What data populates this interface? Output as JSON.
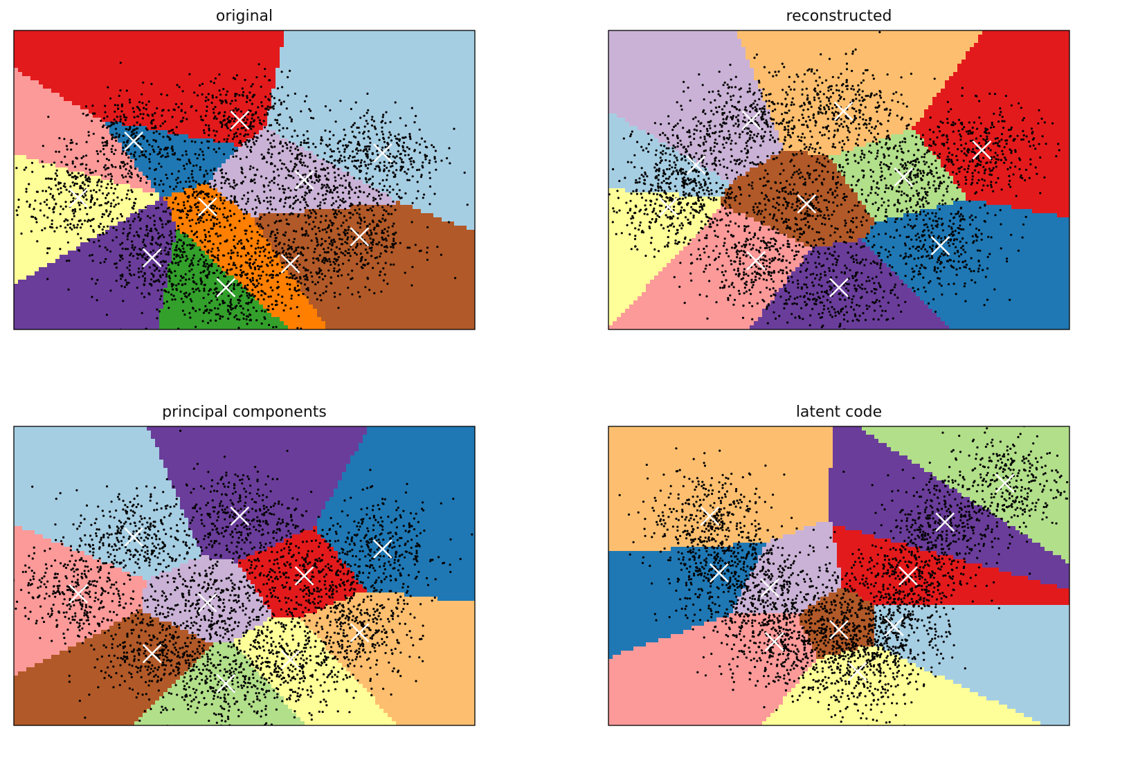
{
  "chart_data": [
    {
      "type": "scatter",
      "title": "original",
      "xlabel": "",
      "ylabel": "",
      "axes_ticks": false,
      "grid": false,
      "xlim": [
        0,
        1
      ],
      "ylim": [
        0,
        1
      ],
      "background": "voronoi-regions",
      "centroids": [
        {
          "x": 0.27,
          "y": 0.64,
          "color": "#1f78b4"
        },
        {
          "x": 0.12,
          "y": 0.44,
          "color": "#ffff99"
        },
        {
          "x": 0.45,
          "y": 0.28,
          "color": "#ff7f00"
        },
        {
          "x": 0.38,
          "y": 0.23,
          "color": "#33a02c"
        },
        {
          "x": 0.63,
          "y": 0.36,
          "color": "#b15928"
        },
        {
          "x": 0.19,
          "y": 0.6,
          "color": "#fb9a99"
        },
        {
          "x": 0.29,
          "y": 0.71,
          "color": "#e31a1c"
        },
        {
          "x": 0.62,
          "y": 0.43,
          "color": "#cab2d6"
        },
        {
          "x": 0.8,
          "y": 0.64,
          "color": "#a6cee3"
        },
        {
          "x": 0.3,
          "y": 0.24,
          "color": "#6a3d9a"
        }
      ],
      "marker_centroids": [
        {
          "x": 0.14,
          "y": 0.44
        },
        {
          "x": 0.26,
          "y": 0.63
        },
        {
          "x": 0.49,
          "y": 0.7
        },
        {
          "x": 0.42,
          "y": 0.41
        },
        {
          "x": 0.63,
          "y": 0.5
        },
        {
          "x": 0.8,
          "y": 0.59
        },
        {
          "x": 0.3,
          "y": 0.24
        },
        {
          "x": 0.46,
          "y": 0.14
        },
        {
          "x": 0.6,
          "y": 0.22
        },
        {
          "x": 0.75,
          "y": 0.31
        }
      ]
    },
    {
      "type": "scatter",
      "title": "reconstructed",
      "xlabel": "",
      "ylabel": "",
      "axes_ticks": false,
      "grid": false,
      "xlim": [
        0,
        1
      ],
      "ylim": [
        0,
        1
      ],
      "background": "voronoi-regions",
      "centroids": [
        {
          "x": 0.2,
          "y": 0.66,
          "color": "#cab2d6"
        },
        {
          "x": 0.09,
          "y": 0.54,
          "color": "#a6cee3"
        },
        {
          "x": 0.07,
          "y": 0.38,
          "color": "#ffff99"
        },
        {
          "x": 0.3,
          "y": 0.24,
          "color": "#fb9a99"
        },
        {
          "x": 0.43,
          "y": 0.42,
          "color": "#b15928"
        },
        {
          "x": 0.51,
          "y": 0.74,
          "color": "#fdbf6f"
        },
        {
          "x": 0.63,
          "y": 0.51,
          "color": "#b2df8a"
        },
        {
          "x": 0.81,
          "y": 0.6,
          "color": "#e31a1c"
        },
        {
          "x": 0.72,
          "y": 0.28,
          "color": "#1f78b4"
        },
        {
          "x": 0.5,
          "y": 0.14,
          "color": "#6a3d9a"
        }
      ],
      "marker_centroids": [
        {
          "x": 0.31,
          "y": 0.7
        },
        {
          "x": 0.19,
          "y": 0.55
        },
        {
          "x": 0.13,
          "y": 0.41
        },
        {
          "x": 0.32,
          "y": 0.23
        },
        {
          "x": 0.43,
          "y": 0.42
        },
        {
          "x": 0.51,
          "y": 0.73
        },
        {
          "x": 0.64,
          "y": 0.51
        },
        {
          "x": 0.81,
          "y": 0.6
        },
        {
          "x": 0.72,
          "y": 0.28
        },
        {
          "x": 0.5,
          "y": 0.14
        }
      ]
    },
    {
      "type": "scatter",
      "title": "principal components",
      "xlabel": "",
      "ylabel": "",
      "axes_ticks": false,
      "grid": false,
      "xlim": [
        0,
        1
      ],
      "ylim": [
        0,
        1
      ],
      "background": "voronoi-regions",
      "centroids": [
        {
          "x": 0.27,
          "y": 0.64,
          "color": "#a6cee3"
        },
        {
          "x": 0.14,
          "y": 0.44,
          "color": "#fb9a99"
        },
        {
          "x": 0.49,
          "y": 0.7,
          "color": "#6a3d9a"
        },
        {
          "x": 0.42,
          "y": 0.41,
          "color": "#cab2d6"
        },
        {
          "x": 0.63,
          "y": 0.5,
          "color": "#e31a1c"
        },
        {
          "x": 0.8,
          "y": 0.59,
          "color": "#1f78b4"
        },
        {
          "x": 0.3,
          "y": 0.24,
          "color": "#b15928"
        },
        {
          "x": 0.46,
          "y": 0.14,
          "color": "#b2df8a"
        },
        {
          "x": 0.6,
          "y": 0.22,
          "color": "#ffff99"
        },
        {
          "x": 0.75,
          "y": 0.31,
          "color": "#fdbf6f"
        }
      ],
      "marker_centroids": [
        {
          "x": 0.14,
          "y": 0.44
        },
        {
          "x": 0.26,
          "y": 0.63
        },
        {
          "x": 0.49,
          "y": 0.7
        },
        {
          "x": 0.42,
          "y": 0.41
        },
        {
          "x": 0.63,
          "y": 0.5
        },
        {
          "x": 0.8,
          "y": 0.59
        },
        {
          "x": 0.3,
          "y": 0.24
        },
        {
          "x": 0.46,
          "y": 0.14
        },
        {
          "x": 0.6,
          "y": 0.22
        },
        {
          "x": 0.75,
          "y": 0.31
        }
      ]
    },
    {
      "type": "scatter",
      "title": "latent code",
      "xlabel": "",
      "ylabel": "",
      "axes_ticks": false,
      "grid": false,
      "xlim": [
        0,
        1
      ],
      "ylim": [
        0,
        1
      ],
      "background": "voronoi-regions",
      "centroids": [
        {
          "x": 0.22,
          "y": 0.7,
          "color": "#fdbf6f"
        },
        {
          "x": 0.24,
          "y": 0.5,
          "color": "#1f78b4"
        },
        {
          "x": 0.36,
          "y": 0.46,
          "color": "#cab2d6"
        },
        {
          "x": 0.36,
          "y": 0.28,
          "color": "#fb9a99"
        },
        {
          "x": 0.5,
          "y": 0.32,
          "color": "#b15928"
        },
        {
          "x": 0.55,
          "y": 0.18,
          "color": "#ffff99"
        },
        {
          "x": 0.65,
          "y": 0.32,
          "color": "#a6cee3"
        },
        {
          "x": 0.65,
          "y": 0.49,
          "color": "#e31a1c"
        },
        {
          "x": 0.73,
          "y": 0.68,
          "color": "#6a3d9a"
        },
        {
          "x": 0.86,
          "y": 0.81,
          "color": "#b2df8a"
        }
      ],
      "marker_centroids": [
        {
          "x": 0.22,
          "y": 0.7
        },
        {
          "x": 0.24,
          "y": 0.51
        },
        {
          "x": 0.35,
          "y": 0.46
        },
        {
          "x": 0.36,
          "y": 0.28
        },
        {
          "x": 0.5,
          "y": 0.32
        },
        {
          "x": 0.54,
          "y": 0.18
        },
        {
          "x": 0.62,
          "y": 0.33
        },
        {
          "x": 0.65,
          "y": 0.5
        },
        {
          "x": 0.73,
          "y": 0.68
        },
        {
          "x": 0.86,
          "y": 0.81
        }
      ]
    }
  ]
}
